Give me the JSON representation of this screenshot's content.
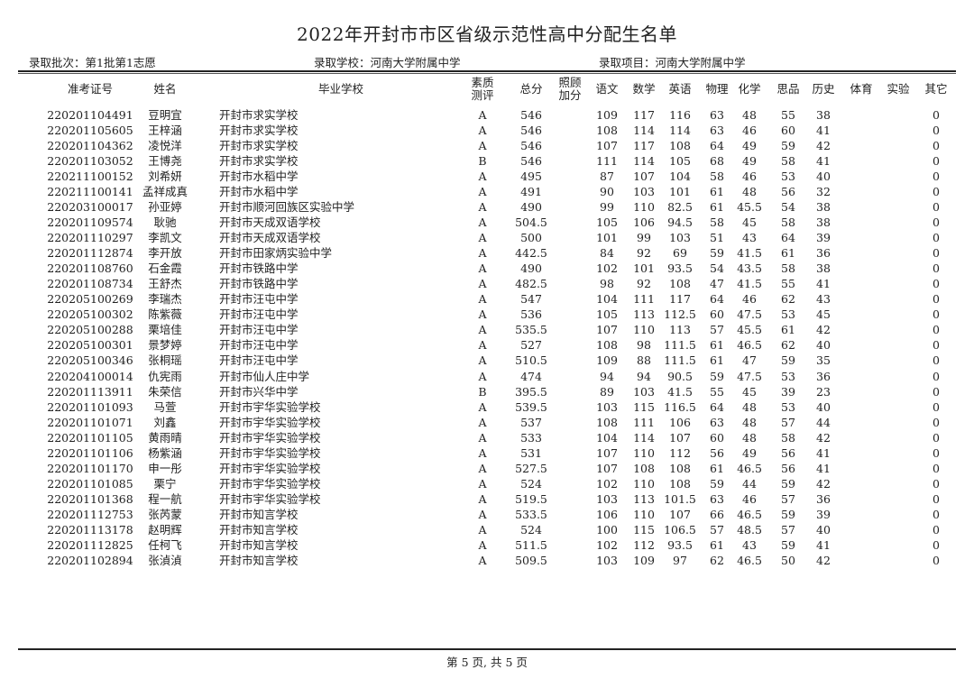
{
  "title": "2022年开封市市区省级示范性高中分配生名单",
  "info": {
    "batch": "录取批次：第1批第1志愿",
    "school": "录取学校：河南大学附属中学",
    "project": "录取项目：河南大学附属中学"
  },
  "columns": [
    "准考证号",
    "姓名",
    "毕业学校",
    "素质\n测评",
    "总分",
    "照顾\n加分",
    "语文",
    "数学",
    "英语",
    "物理",
    "化学",
    "思品",
    "历史",
    "体育",
    "实验",
    "其它"
  ],
  "rows": [
    [
      "220201104491",
      "豆明宜",
      "开封市求实学校",
      "A",
      "546",
      "",
      "109",
      "117",
      "116",
      "63",
      "48",
      "55",
      "38",
      "",
      "",
      "0"
    ],
    [
      "220201105605",
      "王梓涵",
      "开封市求实学校",
      "A",
      "546",
      "",
      "108",
      "114",
      "114",
      "63",
      "46",
      "60",
      "41",
      "",
      "",
      "0"
    ],
    [
      "220201104362",
      "凌悦洋",
      "开封市求实学校",
      "A",
      "546",
      "",
      "107",
      "117",
      "108",
      "64",
      "49",
      "59",
      "42",
      "",
      "",
      "0"
    ],
    [
      "220201103052",
      "王博尧",
      "开封市求实学校",
      "B",
      "546",
      "",
      "111",
      "114",
      "105",
      "68",
      "49",
      "58",
      "41",
      "",
      "",
      "0"
    ],
    [
      "220211100152",
      "刘希妍",
      "开封市水稻中学",
      "A",
      "495",
      "",
      "87",
      "107",
      "104",
      "58",
      "46",
      "53",
      "40",
      "",
      "",
      "0"
    ],
    [
      "220211100141",
      "孟祥成真",
      "开封市水稻中学",
      "A",
      "491",
      "",
      "90",
      "103",
      "101",
      "61",
      "48",
      "56",
      "32",
      "",
      "",
      "0"
    ],
    [
      "220203100017",
      "孙亚婷",
      "开封市顺河回族区实验中学",
      "A",
      "490",
      "",
      "99",
      "110",
      "82.5",
      "61",
      "45.5",
      "54",
      "38",
      "",
      "",
      "0"
    ],
    [
      "220201109574",
      "耿驰",
      "开封市天成双语学校",
      "A",
      "504.5",
      "",
      "105",
      "106",
      "94.5",
      "58",
      "45",
      "58",
      "38",
      "",
      "",
      "0"
    ],
    [
      "220201110297",
      "李凯文",
      "开封市天成双语学校",
      "A",
      "500",
      "",
      "101",
      "99",
      "103",
      "51",
      "43",
      "64",
      "39",
      "",
      "",
      "0"
    ],
    [
      "220201112874",
      "李开放",
      "开封市田家炳实验中学",
      "A",
      "442.5",
      "",
      "84",
      "92",
      "69",
      "59",
      "41.5",
      "61",
      "36",
      "",
      "",
      "0"
    ],
    [
      "220201108760",
      "石金霞",
      "开封市铁路中学",
      "A",
      "490",
      "",
      "102",
      "101",
      "93.5",
      "54",
      "43.5",
      "58",
      "38",
      "",
      "",
      "0"
    ],
    [
      "220201108734",
      "王舒杰",
      "开封市铁路中学",
      "A",
      "482.5",
      "",
      "98",
      "92",
      "108",
      "47",
      "41.5",
      "55",
      "41",
      "",
      "",
      "0"
    ],
    [
      "220205100269",
      "李瑞杰",
      "开封市汪屯中学",
      "A",
      "547",
      "",
      "104",
      "111",
      "117",
      "64",
      "46",
      "62",
      "43",
      "",
      "",
      "0"
    ],
    [
      "220205100302",
      "陈紫薇",
      "开封市汪屯中学",
      "A",
      "536",
      "",
      "105",
      "113",
      "112.5",
      "60",
      "47.5",
      "53",
      "45",
      "",
      "",
      "0"
    ],
    [
      "220205100288",
      "栗培佳",
      "开封市汪屯中学",
      "A",
      "535.5",
      "",
      "107",
      "110",
      "113",
      "57",
      "45.5",
      "61",
      "42",
      "",
      "",
      "0"
    ],
    [
      "220205100301",
      "景梦婷",
      "开封市汪屯中学",
      "A",
      "527",
      "",
      "108",
      "98",
      "111.5",
      "61",
      "46.5",
      "62",
      "40",
      "",
      "",
      "0"
    ],
    [
      "220205100346",
      "张桐瑶",
      "开封市汪屯中学",
      "A",
      "510.5",
      "",
      "109",
      "88",
      "111.5",
      "61",
      "47",
      "59",
      "35",
      "",
      "",
      "0"
    ],
    [
      "220204100014",
      "仇宪雨",
      "开封市仙人庄中学",
      "A",
      "474",
      "",
      "94",
      "94",
      "90.5",
      "59",
      "47.5",
      "53",
      "36",
      "",
      "",
      "0"
    ],
    [
      "220201113911",
      "朱荣信",
      "开封市兴华中学",
      "B",
      "395.5",
      "",
      "89",
      "103",
      "41.5",
      "55",
      "45",
      "39",
      "23",
      "",
      "",
      "0"
    ],
    [
      "220201101093",
      "马萱",
      "开封市宇华实验学校",
      "A",
      "539.5",
      "",
      "103",
      "115",
      "116.5",
      "64",
      "48",
      "53",
      "40",
      "",
      "",
      "0"
    ],
    [
      "220201101071",
      "刘鑫",
      "开封市宇华实验学校",
      "A",
      "537",
      "",
      "108",
      "111",
      "106",
      "63",
      "48",
      "57",
      "44",
      "",
      "",
      "0"
    ],
    [
      "220201101105",
      "黄雨晴",
      "开封市宇华实验学校",
      "A",
      "533",
      "",
      "104",
      "114",
      "107",
      "60",
      "48",
      "58",
      "42",
      "",
      "",
      "0"
    ],
    [
      "220201101106",
      "杨紫涵",
      "开封市宇华实验学校",
      "A",
      "531",
      "",
      "107",
      "110",
      "112",
      "56",
      "49",
      "56",
      "41",
      "",
      "",
      "0"
    ],
    [
      "220201101170",
      "申一彤",
      "开封市宇华实验学校",
      "A",
      "527.5",
      "",
      "107",
      "108",
      "108",
      "61",
      "46.5",
      "56",
      "41",
      "",
      "",
      "0"
    ],
    [
      "220201101085",
      "栗宁",
      "开封市宇华实验学校",
      "A",
      "524",
      "",
      "102",
      "110",
      "108",
      "59",
      "44",
      "59",
      "42",
      "",
      "",
      "0"
    ],
    [
      "220201101368",
      "程一航",
      "开封市宇华实验学校",
      "A",
      "519.5",
      "",
      "103",
      "113",
      "101.5",
      "63",
      "46",
      "57",
      "36",
      "",
      "",
      "0"
    ],
    [
      "220201112753",
      "张芮蒙",
      "开封市知言学校",
      "A",
      "533.5",
      "",
      "106",
      "110",
      "107",
      "66",
      "46.5",
      "59",
      "39",
      "",
      "",
      "0"
    ],
    [
      "220201113178",
      "赵明辉",
      "开封市知言学校",
      "A",
      "524",
      "",
      "100",
      "115",
      "106.5",
      "57",
      "48.5",
      "57",
      "40",
      "",
      "",
      "0"
    ],
    [
      "220201112825",
      "任柯飞",
      "开封市知言学校",
      "A",
      "511.5",
      "",
      "102",
      "112",
      "93.5",
      "61",
      "43",
      "59",
      "41",
      "",
      "",
      "0"
    ],
    [
      "220201102894",
      "张湞湞",
      "开封市知言学校",
      "A",
      "509.5",
      "",
      "103",
      "109",
      "97",
      "62",
      "46.5",
      "50",
      "42",
      "",
      "",
      "0"
    ]
  ],
  "footer": "第 5 页, 共 5 页"
}
